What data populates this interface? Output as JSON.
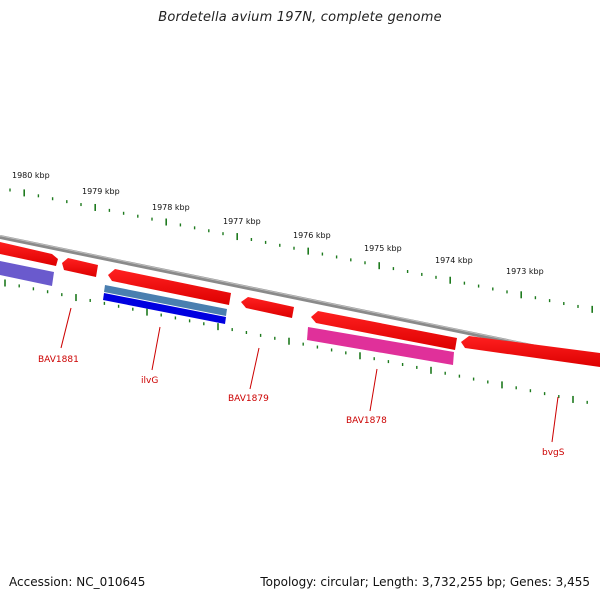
{
  "title": "Bordetella avium 197N, complete genome",
  "footer": {
    "accession": "Accession: NC_010645",
    "summary": "Topology: circular; Length: 3,732,255 bp; Genes: 3,455"
  },
  "colors": {
    "tick_green": "#1e7a1e",
    "backbone": "#808080",
    "cds_red": "#ee0000",
    "label_red": "#cc0000",
    "purple": "#6a5acd",
    "steel": "#4682b4",
    "blue": "#0000ee",
    "magenta": "#e0309a"
  },
  "scale": {
    "tick_labels": [
      "1980 kbp",
      "1979 kbp",
      "1978 kbp",
      "1977 kbp",
      "1976 kbp",
      "1975 kbp",
      "1974 kbp",
      "1973 kbp"
    ]
  },
  "genes": [
    {
      "name": "BAV1881"
    },
    {
      "name": "ilvG"
    },
    {
      "name": "BAV1879"
    },
    {
      "name": "BAV1878"
    },
    {
      "name": "bvgS"
    }
  ]
}
